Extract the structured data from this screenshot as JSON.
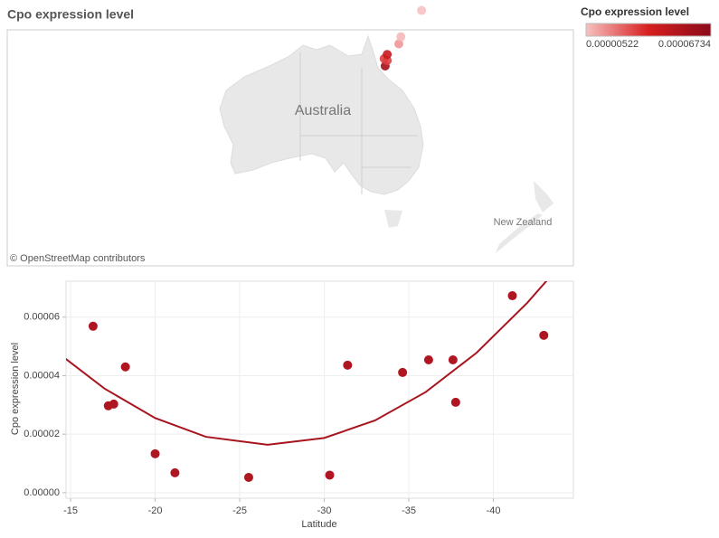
{
  "title": "Cpo expression level",
  "legend": {
    "title": "Cpo expression level",
    "range": [
      5.22e-06,
      6.734e-05
    ],
    "colors": [
      "#f7c1c1",
      "#d71f1f",
      "#8a0a1a"
    ]
  },
  "map": {
    "labels": [
      "Australia",
      "New Zealand"
    ],
    "attribution": "© OpenStreetMap contributors",
    "lon": [
      145.5,
      145.9,
      145.3,
      145.9,
      148.2,
      148.6,
      152.7,
      153.0,
      152.8,
      150.9,
      150.2,
      145.3,
      147.7,
      146.9,
      146.9
    ]
  },
  "chart_data": {
    "type": "scatter",
    "xlabel": "Latitude",
    "ylabel": "Cpo expression level",
    "color": "#b01622",
    "x": [
      -16.33,
      -17.23,
      -17.55,
      -18.24,
      -20.0,
      -21.17,
      -25.53,
      -30.32,
      -31.38,
      -34.63,
      -36.17,
      -37.61,
      -37.77,
      -41.12,
      -42.98
    ],
    "values": [
      5.69e-05,
      2.97e-05,
      3.03e-05,
      4.3e-05,
      1.33e-05,
      6.8e-06,
      5.22e-06,
      6e-06,
      4.36e-05,
      4.11e-05,
      4.54e-05,
      4.54e-05,
      3.09e-05,
      6.734e-05,
      5.38e-05
    ],
    "xlim": [
      -14.73,
      -44.73
    ],
    "xticks": [
      -15,
      -20,
      -25,
      -30,
      -35,
      -40
    ],
    "ylim": [
      -1.9e-06,
      7.23e-05
    ],
    "yticks": [
      {
        "value": 0,
        "label": "0.00000"
      },
      2e-05,
      4e-05,
      6e-05
    ],
    "grid": true,
    "trend_line": {
      "color": "#a8151f",
      "x": [
        -14.7,
        -17,
        -20,
        -23,
        -26.65,
        -30,
        -33,
        -36,
        -39,
        -42,
        -43.2
      ],
      "values": [
        4.58e-05,
        3.56e-05,
        2.55e-05,
        1.91e-05,
        1.64e-05,
        1.87e-05,
        2.47e-05,
        3.44e-05,
        4.78e-05,
        6.49e-05,
        7.28e-05
      ]
    }
  }
}
